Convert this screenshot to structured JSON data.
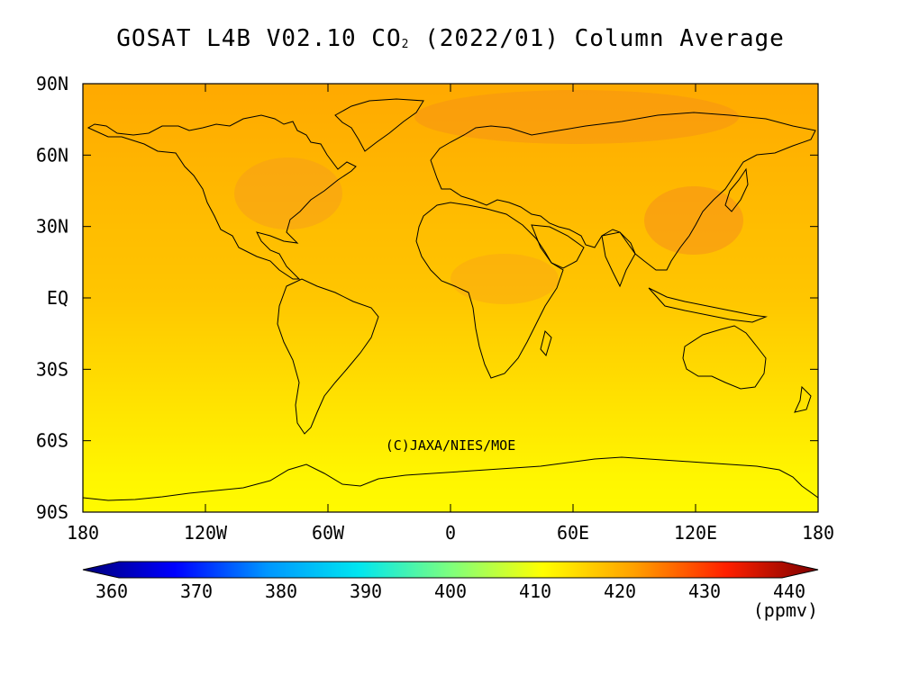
{
  "title": {
    "prefix": "GOSAT L4B V02.10 CO",
    "subscript": "2",
    "suffix": " (2022/01) Column Average"
  },
  "copyright": "(C)JAXA/NIES/MOE",
  "lat_labels": [
    "90N",
    "60N",
    "30N",
    "EQ",
    "30S",
    "60S",
    "90S"
  ],
  "lon_labels": [
    "180",
    "120W",
    "60W",
    "0",
    "60E",
    "120E",
    "180"
  ],
  "colorbar": {
    "ticks": [
      "360",
      "370",
      "380",
      "390",
      "400",
      "410",
      "420",
      "430",
      "440"
    ],
    "unit": "(ppmv)",
    "stops": [
      "#00007a",
      "#0000ff",
      "#0096ff",
      "#00e6f0",
      "#7dff7d",
      "#ffff00",
      "#ffa000",
      "#ff2000",
      "#7a0000"
    ]
  },
  "chart_data": {
    "type": "heatmap",
    "title": "GOSAT L4B V02.10 CO2 (2022/01) Column Average",
    "x_range": [
      -180,
      180
    ],
    "y_range": [
      -90,
      90
    ],
    "value_range": [
      360,
      440
    ],
    "unit": "ppmv",
    "zonal_mean": {
      "lat": [
        90,
        75,
        60,
        45,
        30,
        15,
        0,
        -15,
        -30,
        -45,
        -60,
        -75,
        -90
      ],
      "co2_ppmv": [
        419.0,
        418.5,
        418.0,
        417.5,
        417.0,
        416.5,
        416.0,
        415.0,
        414.0,
        413.0,
        412.0,
        411.0,
        410.5
      ]
    }
  }
}
